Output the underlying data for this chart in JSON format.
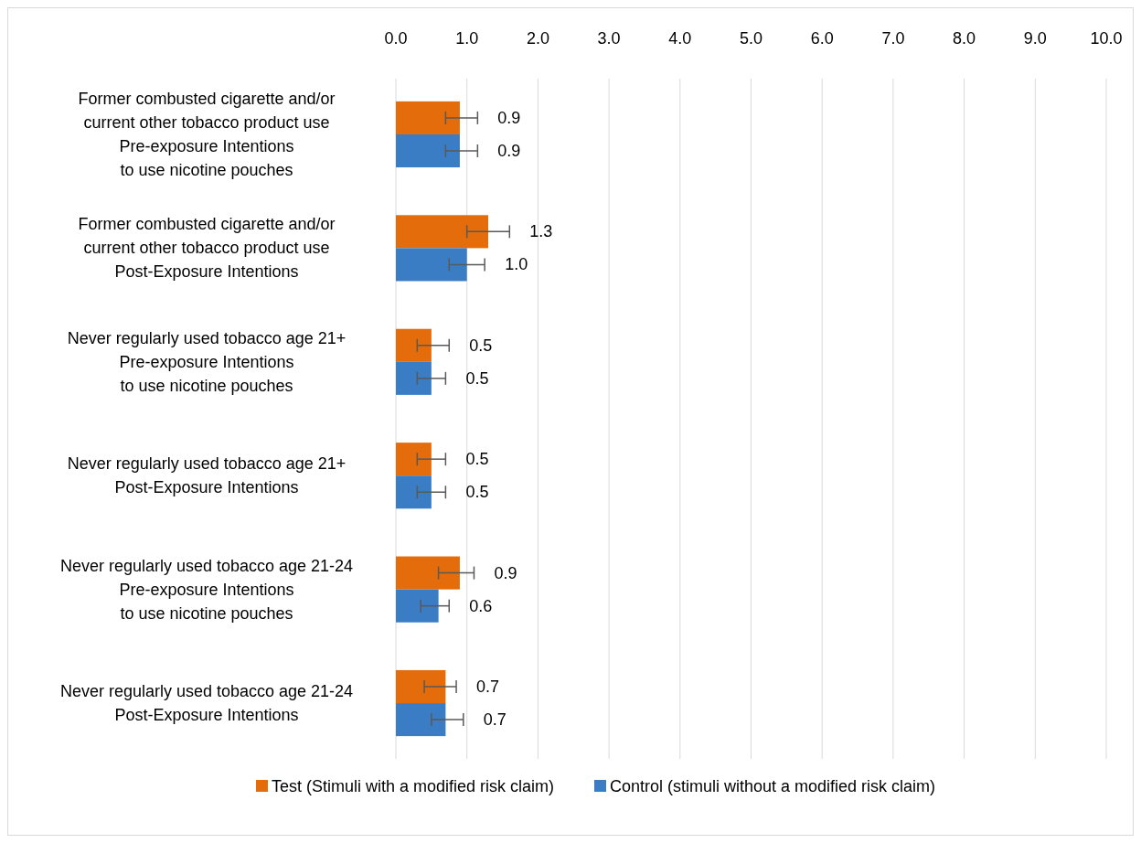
{
  "chart_data": {
    "type": "bar",
    "orientation": "horizontal",
    "categories": [
      "Former combusted cigarette and/or\ncurrent other tobacco product use\nPre-exposure Intentions\nto use nicotine pouches",
      "Former combusted cigarette and/or\ncurrent other tobacco product use\nPost-Exposure Intentions",
      "Never regularly used tobacco age 21+\nPre-exposure Intentions\nto use nicotine pouches",
      "Never regularly used tobacco age 21+\nPost-Exposure Intentions",
      "Never regularly used tobacco age 21-24\nPre-exposure Intentions\nto use nicotine pouches",
      "Never regularly used tobacco age 21-24\nPost-Exposure Intentions"
    ],
    "series": [
      {
        "name": "Test (Stimuli with a modified risk claim)",
        "color": "#e46c0a",
        "values": [
          0.9,
          1.3,
          0.5,
          0.5,
          0.9,
          0.7
        ],
        "value_labels": [
          "0.9",
          "1.3",
          "0.5",
          "0.5",
          "0.9",
          "0.7"
        ],
        "errors": [
          [
            0.7,
            1.15
          ],
          [
            1.0,
            1.6
          ],
          [
            0.3,
            0.75
          ],
          [
            0.3,
            0.7
          ],
          [
            0.6,
            1.1
          ],
          [
            0.4,
            0.85
          ]
        ]
      },
      {
        "name": "Control (stimuli without a modified risk claim)",
        "color": "#3b7dc4",
        "values": [
          0.9,
          1.0,
          0.5,
          0.5,
          0.6,
          0.7
        ],
        "value_labels": [
          "0.9",
          "1.0",
          "0.5",
          "0.5",
          "0.6",
          "0.7"
        ],
        "errors": [
          [
            0.7,
            1.15
          ],
          [
            0.75,
            1.25
          ],
          [
            0.3,
            0.7
          ],
          [
            0.3,
            0.7
          ],
          [
            0.35,
            0.75
          ],
          [
            0.5,
            0.95
          ]
        ]
      }
    ],
    "xlim": [
      0,
      10
    ],
    "xticks": [
      {
        "value": 0,
        "label": "0.0"
      },
      {
        "value": 1,
        "label": "1.0"
      },
      {
        "value": 2,
        "label": "2.0"
      },
      {
        "value": 3,
        "label": "3.0"
      },
      {
        "value": 4,
        "label": "4.0"
      },
      {
        "value": 5,
        "label": "5.0"
      },
      {
        "value": 6,
        "label": "6.0"
      },
      {
        "value": 7,
        "label": "7.0"
      },
      {
        "value": 8,
        "label": "8.0"
      },
      {
        "value": 9,
        "label": "9.0"
      },
      {
        "value": 10,
        "label": "10.0"
      }
    ],
    "grid": "x",
    "legend": "bottom"
  }
}
